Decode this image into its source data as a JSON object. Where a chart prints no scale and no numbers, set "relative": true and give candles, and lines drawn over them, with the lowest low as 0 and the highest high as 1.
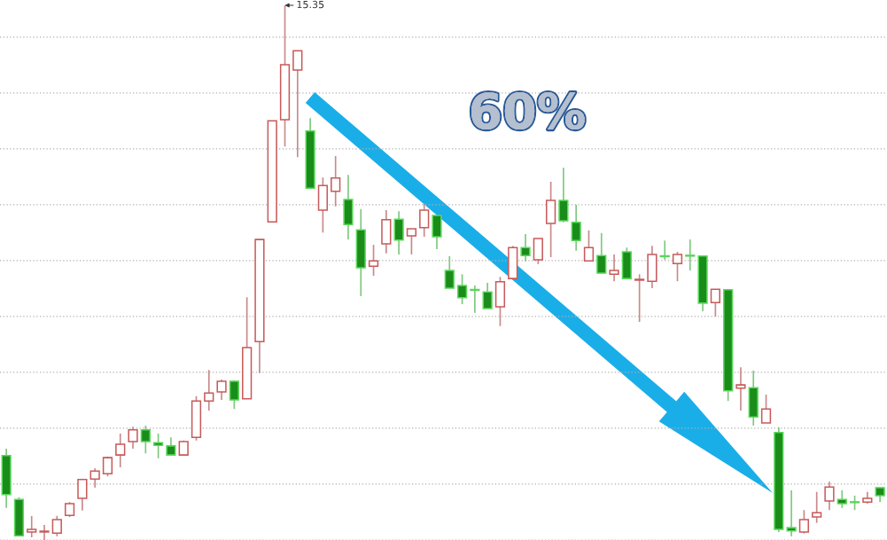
{
  "chart_data": {
    "type": "candlestick",
    "relative": true,
    "grid": "y",
    "categories": [
      null,
      null,
      null,
      null,
      null,
      null,
      null,
      null,
      null,
      null,
      null,
      null,
      null,
      null,
      null,
      null,
      null,
      null,
      null,
      null,
      null,
      null,
      null,
      null,
      null,
      null,
      null,
      null,
      null,
      null,
      null,
      null,
      null,
      null,
      null,
      null,
      null,
      null,
      null,
      null,
      null,
      null,
      null,
      null,
      null,
      null,
      null,
      null,
      null,
      null,
      null,
      null,
      null,
      null,
      null,
      null,
      null,
      null,
      null,
      null,
      null,
      null,
      null,
      null,
      null,
      null,
      null,
      null,
      null,
      null
    ],
    "ohlc": [
      [
        0.158,
        0.171,
        0.06,
        0.085
      ],
      [
        0.076,
        0.08,
        0.007,
        0.008
      ],
      [
        0.015,
        0.045,
        0.005,
        0.02
      ],
      [
        0.015,
        0.028,
        0,
        0.016
      ],
      [
        0.013,
        0.045,
        0.007,
        0.038
      ],
      [
        0.046,
        0.071,
        0.043,
        0.068
      ],
      [
        0.078,
        0.114,
        0.055,
        0.113
      ],
      [
        0.114,
        0.134,
        0.098,
        0.129
      ],
      [
        0.124,
        0.156,
        0.119,
        0.154
      ],
      [
        0.159,
        0.199,
        0.136,
        0.179
      ],
      [
        0.184,
        0.212,
        0.171,
        0.206
      ],
      [
        0.206,
        0.214,
        0.162,
        0.184
      ],
      [
        0.182,
        0.199,
        0.153,
        0.177
      ],
      [
        0.176,
        0.192,
        0.159,
        0.159
      ],
      [
        0.159,
        0.186,
        0.159,
        0.184
      ],
      [
        0.192,
        0.269,
        0.186,
        0.26
      ],
      [
        0.26,
        0.318,
        0.242,
        0.275
      ],
      [
        0.277,
        0.3,
        0.262,
        0.297
      ],
      [
        0.297,
        0.298,
        0.245,
        0.262
      ],
      [
        0.264,
        0.454,
        0.264,
        0.36
      ],
      [
        0.371,
        0.562,
        0.312,
        0.562
      ],
      [
        0.595,
        0.784,
        0.595,
        0.784
      ],
      [
        0.786,
        1,
        0.736,
        0.889
      ],
      [
        0.879,
        0.915,
        0.716,
        0.915
      ],
      [
        0.765,
        0.789,
        0.658,
        0.658
      ],
      [
        0.617,
        0.678,
        0.575,
        0.663
      ],
      [
        0.652,
        0.718,
        0.624,
        0.677
      ],
      [
        0.637,
        0.683,
        0.562,
        0.59
      ],
      [
        0.58,
        0.619,
        0.456,
        0.509
      ],
      [
        0.512,
        0.552,
        0.494,
        0.522
      ],
      [
        0.554,
        0.617,
        0.536,
        0.599
      ],
      [
        0.6,
        0.615,
        0.534,
        0.561
      ],
      [
        0.569,
        0.582,
        0.534,
        0.582
      ],
      [
        0.584,
        0.63,
        0.567,
        0.617
      ],
      [
        0.607,
        0.607,
        0.544,
        0.567
      ],
      [
        0.504,
        0.531,
        0.471,
        0.471
      ],
      [
        0.476,
        0.497,
        0.441,
        0.453
      ],
      [
        0.468,
        0.476,
        0.425,
        0.467
      ],
      [
        0.464,
        0.481,
        0.433,
        0.433
      ],
      [
        0.436,
        0.492,
        0.4,
        0.483
      ],
      [
        0.489,
        0.55,
        0.489,
        0.547
      ],
      [
        0.547,
        0.572,
        0.521,
        0.532
      ],
      [
        0.524,
        0.564,
        0.516,
        0.564
      ],
      [
        0.592,
        0.67,
        0.529,
        0.635
      ],
      [
        0.635,
        0.696,
        0.594,
        0.597
      ],
      [
        0.594,
        0.627,
        0.541,
        0.56
      ],
      [
        0.522,
        0.579,
        0.522,
        0.547
      ],
      [
        0.532,
        0.574,
        0.499,
        0.499
      ],
      [
        0.497,
        0.534,
        0.484,
        0.504
      ],
      [
        0.539,
        0.547,
        0.489,
        0.489
      ],
      [
        0.486,
        0.497,
        0.408,
        0.487
      ],
      [
        0.484,
        0.55,
        0.471,
        0.534
      ],
      [
        0.531,
        0.56,
        0.524,
        0.53
      ],
      [
        0.517,
        0.539,
        0.484,
        0.534
      ],
      [
        0.532,
        0.562,
        0.504,
        0.531
      ],
      [
        0.531,
        0.531,
        0.428,
        0.443
      ],
      [
        0.444,
        0.469,
        0.418,
        0.469
      ],
      [
        0.468,
        0.468,
        0.26,
        0.279
      ],
      [
        0.284,
        0.323,
        0.242,
        0.29
      ],
      [
        0.285,
        0.317,
        0.214,
        0.23
      ],
      [
        0.219,
        0.272,
        0.219,
        0.245
      ],
      [
        0.201,
        0.211,
        0.015,
        0.02
      ],
      [
        0.023,
        0.093,
        0.007,
        0.017
      ],
      [
        0.015,
        0.056,
        0.012,
        0.038
      ],
      [
        0.043,
        0.09,
        0.032,
        0.051
      ],
      [
        0.073,
        0.109,
        0.056,
        0.099
      ],
      [
        0.076,
        0.093,
        0.06,
        0.068
      ],
      [
        0.071,
        0.083,
        0.056,
        0.07
      ],
      [
        0.071,
        0.09,
        0.068,
        0.078
      ],
      [
        0.098,
        0.098,
        0.071,
        0.083
      ]
    ],
    "annotations": [
      "60%",
      "15.35"
    ]
  }
}
